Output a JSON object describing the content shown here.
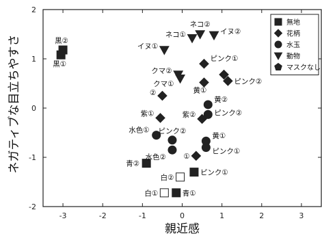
{
  "chart_data": {
    "type": "scatter",
    "title": "",
    "xlabel": "親近感",
    "ylabel": "ネガティブな目立ちやすさ",
    "xlim": [
      -3.5,
      3.5
    ],
    "ylim": [
      -2,
      2
    ],
    "xticks": [
      -3,
      -2,
      -1,
      0,
      1,
      2,
      3
    ],
    "yticks": [
      -2,
      -1,
      0,
      1,
      2
    ],
    "grid": false,
    "legend_position": "top-right",
    "series": [
      {
        "name": "無地",
        "marker": "square",
        "points": [
          {
            "x": -3.0,
            "y": 1.18,
            "label": "黒②"
          },
          {
            "x": -3.05,
            "y": 1.08,
            "label": "黒①"
          },
          {
            "x": -0.9,
            "y": -1.12,
            "label": "青②"
          },
          {
            "x": -0.15,
            "y": -1.72,
            "label": "青①"
          },
          {
            "x": -0.45,
            "y": -1.72,
            "label": "白①",
            "hollow": true
          },
          {
            "x": -0.05,
            "y": -1.4,
            "label": "白②",
            "hollow": true
          },
          {
            "x": 0.3,
            "y": -1.3,
            "label": "ピンク①"
          }
        ]
      },
      {
        "name": "花柄",
        "marker": "diamond",
        "points": [
          {
            "x": 0.55,
            "y": 0.9,
            "label": "ピンク①"
          },
          {
            "x": 1.05,
            "y": 0.68,
            "label": ""
          },
          {
            "x": 1.15,
            "y": 0.55,
            "label": "ピンク②"
          },
          {
            "x": 0.55,
            "y": 0.52,
            "label": "黄①"
          },
          {
            "x": -0.5,
            "y": 0.25,
            "label": "②"
          },
          {
            "x": -0.55,
            "y": -0.2,
            "label": "紫①"
          },
          {
            "x": 0.5,
            "y": -0.22,
            "label": "紫②"
          },
          {
            "x": 0.35,
            "y": -0.97,
            "label": "①"
          }
        ]
      },
      {
        "name": "水玉",
        "marker": "circle",
        "points": [
          {
            "x": 0.65,
            "y": 0.07,
            "label": "黄②"
          },
          {
            "x": 0.65,
            "y": -0.13,
            "label": "ピンク②"
          },
          {
            "x": -0.65,
            "y": -0.55,
            "label": "水色①"
          },
          {
            "x": -0.25,
            "y": -0.65,
            "label": "ピンク②"
          },
          {
            "x": -0.25,
            "y": -0.85,
            "label": "水色②"
          },
          {
            "x": 0.6,
            "y": -0.67,
            "label": "黄①"
          },
          {
            "x": 0.6,
            "y": -0.8,
            "label": "ピンク①"
          }
        ]
      },
      {
        "name": "動物",
        "marker": "triangle-down",
        "points": [
          {
            "x": 0.45,
            "y": 1.5,
            "label": "ネコ②"
          },
          {
            "x": 0.25,
            "y": 1.42,
            "label": "ネコ①"
          },
          {
            "x": 0.8,
            "y": 1.48,
            "label": "イヌ②"
          },
          {
            "x": -0.45,
            "y": 1.18,
            "label": "イヌ①"
          },
          {
            "x": -0.1,
            "y": 0.68,
            "label": "クマ②"
          },
          {
            "x": -0.05,
            "y": 0.6,
            "label": "クマ①"
          }
        ]
      },
      {
        "name": "マスクなし",
        "marker": "pentagon",
        "points": []
      }
    ]
  }
}
